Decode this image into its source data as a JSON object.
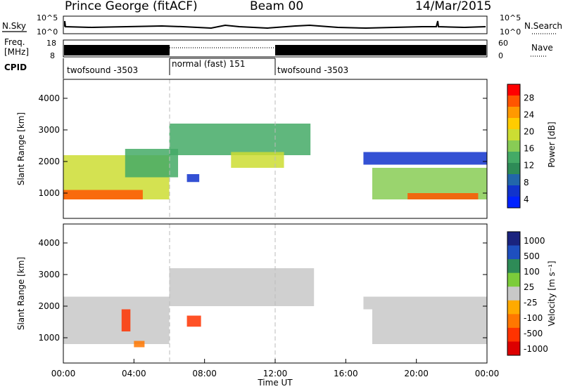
{
  "header": {
    "title": "Prince George (fitACF)",
    "beam": "Beam 00",
    "date": "14/Mar/2015"
  },
  "panels": {
    "nsky": {
      "left_label": "N.Sky",
      "right_label": "N.Search",
      "y_ticks_left": [
        "10^5",
        "10^0"
      ],
      "y_ticks_right": [
        "10^5",
        "10^0"
      ]
    },
    "freq": {
      "left_label_1": "Freq.",
      "left_label_2": "[MHz]",
      "y_ticks_left": [
        "18",
        "8"
      ],
      "y_ticks_right": [
        "60",
        "0"
      ],
      "right_label": "Nave"
    },
    "cpid": {
      "label": "CPID",
      "segments": [
        {
          "label": "twofsound -3503",
          "start_hr": 0,
          "end_hr": 6
        },
        {
          "label": "normal (fast) 151",
          "start_hr": 6,
          "end_hr": 12
        },
        {
          "label": "twofsound -3503",
          "start_hr": 12,
          "end_hr": 24
        }
      ]
    }
  },
  "colorbars": {
    "power": {
      "label": "Power [dB]",
      "ticks": [
        "28",
        "24",
        "20",
        "16",
        "12",
        "8",
        "4"
      ],
      "colors": [
        "#ff0000",
        "#ff5500",
        "#ff9900",
        "#ffcc00",
        "#ccdd33",
        "#88cc55",
        "#44aa66",
        "#2e8b57",
        "#2266aa",
        "#1133cc",
        "#0022ff"
      ]
    },
    "velocity": {
      "label": "Velocity [m s⁻¹]",
      "ticks": [
        "1000",
        "500",
        "100",
        "25",
        "-25",
        "-100",
        "-500",
        "-1000"
      ],
      "colors": [
        "#1a237e",
        "#1e4fbf",
        "#2e8b57",
        "#7ccc3a",
        "#c8c8c8",
        "#ffaa00",
        "#ff7700",
        "#ff3300",
        "#dd0000"
      ]
    }
  },
  "axes": {
    "ylabel": "Slant Range [km]",
    "y_ticks": [
      "4000",
      "3000",
      "2000",
      "1000"
    ],
    "xlabel": "Time UT",
    "x_ticks": [
      "00:00",
      "04:00",
      "08:00",
      "12:00",
      "16:00",
      "20:00",
      "00:00"
    ]
  },
  "chart_data": [
    {
      "type": "heatmap",
      "title": "",
      "xlabel": "",
      "ylabel": "Slant Range [km]",
      "value_label": "Power [dB]",
      "xlim": [
        0,
        24
      ],
      "ylim": [
        200,
        4600
      ],
      "clim": [
        2,
        30
      ],
      "regions": [
        {
          "t0": 0,
          "t1": 6,
          "r0": 800,
          "r1": 2200,
          "value": 18
        },
        {
          "t0": 0,
          "t1": 4.5,
          "r0": 800,
          "r1": 1100,
          "value": 28
        },
        {
          "t0": 3.5,
          "t1": 6.5,
          "r0": 1500,
          "r1": 2400,
          "value": 14
        },
        {
          "t0": 6,
          "t1": 14,
          "r0": 2200,
          "r1": 3200,
          "value": 12
        },
        {
          "t0": 9.5,
          "t1": 12.5,
          "r0": 1800,
          "r1": 2300,
          "value": 20
        },
        {
          "t0": 7.0,
          "t1": 7.7,
          "r0": 1350,
          "r1": 1600,
          "value": 6
        },
        {
          "t0": 17.5,
          "t1": 24,
          "r0": 800,
          "r1": 1800,
          "value": 17
        },
        {
          "t0": 19.5,
          "t1": 23.5,
          "r0": 800,
          "r1": 1000,
          "value": 28
        },
        {
          "t0": 17,
          "t1": 24,
          "r0": 1900,
          "r1": 2300,
          "value": 5
        }
      ]
    },
    {
      "type": "heatmap",
      "title": "",
      "xlabel": "Time UT",
      "ylabel": "Slant Range [km]",
      "value_label": "Velocity [m s⁻¹]",
      "xlim": [
        0,
        24
      ],
      "ylim": [
        200,
        4600
      ],
      "clim": [
        -1000,
        1000
      ],
      "regions": [
        {
          "t0": 0,
          "t1": 6,
          "r0": 800,
          "r1": 2300,
          "value": 0
        },
        {
          "t0": 3.3,
          "t1": 3.8,
          "r0": 1200,
          "r1": 1900,
          "value": -500
        },
        {
          "t0": 7.0,
          "t1": 7.8,
          "r0": 1350,
          "r1": 1700,
          "value": -500
        },
        {
          "t0": 4.0,
          "t1": 4.6,
          "r0": 700,
          "r1": 900,
          "value": -100
        },
        {
          "t0": 6,
          "t1": 14.2,
          "r0": 2000,
          "r1": 3200,
          "value": 0
        },
        {
          "t0": 17.5,
          "t1": 24,
          "r0": 800,
          "r1": 1900,
          "value": 0
        },
        {
          "t0": 17,
          "t1": 24,
          "r0": 1900,
          "r1": 2300,
          "value": 0
        }
      ]
    }
  ]
}
